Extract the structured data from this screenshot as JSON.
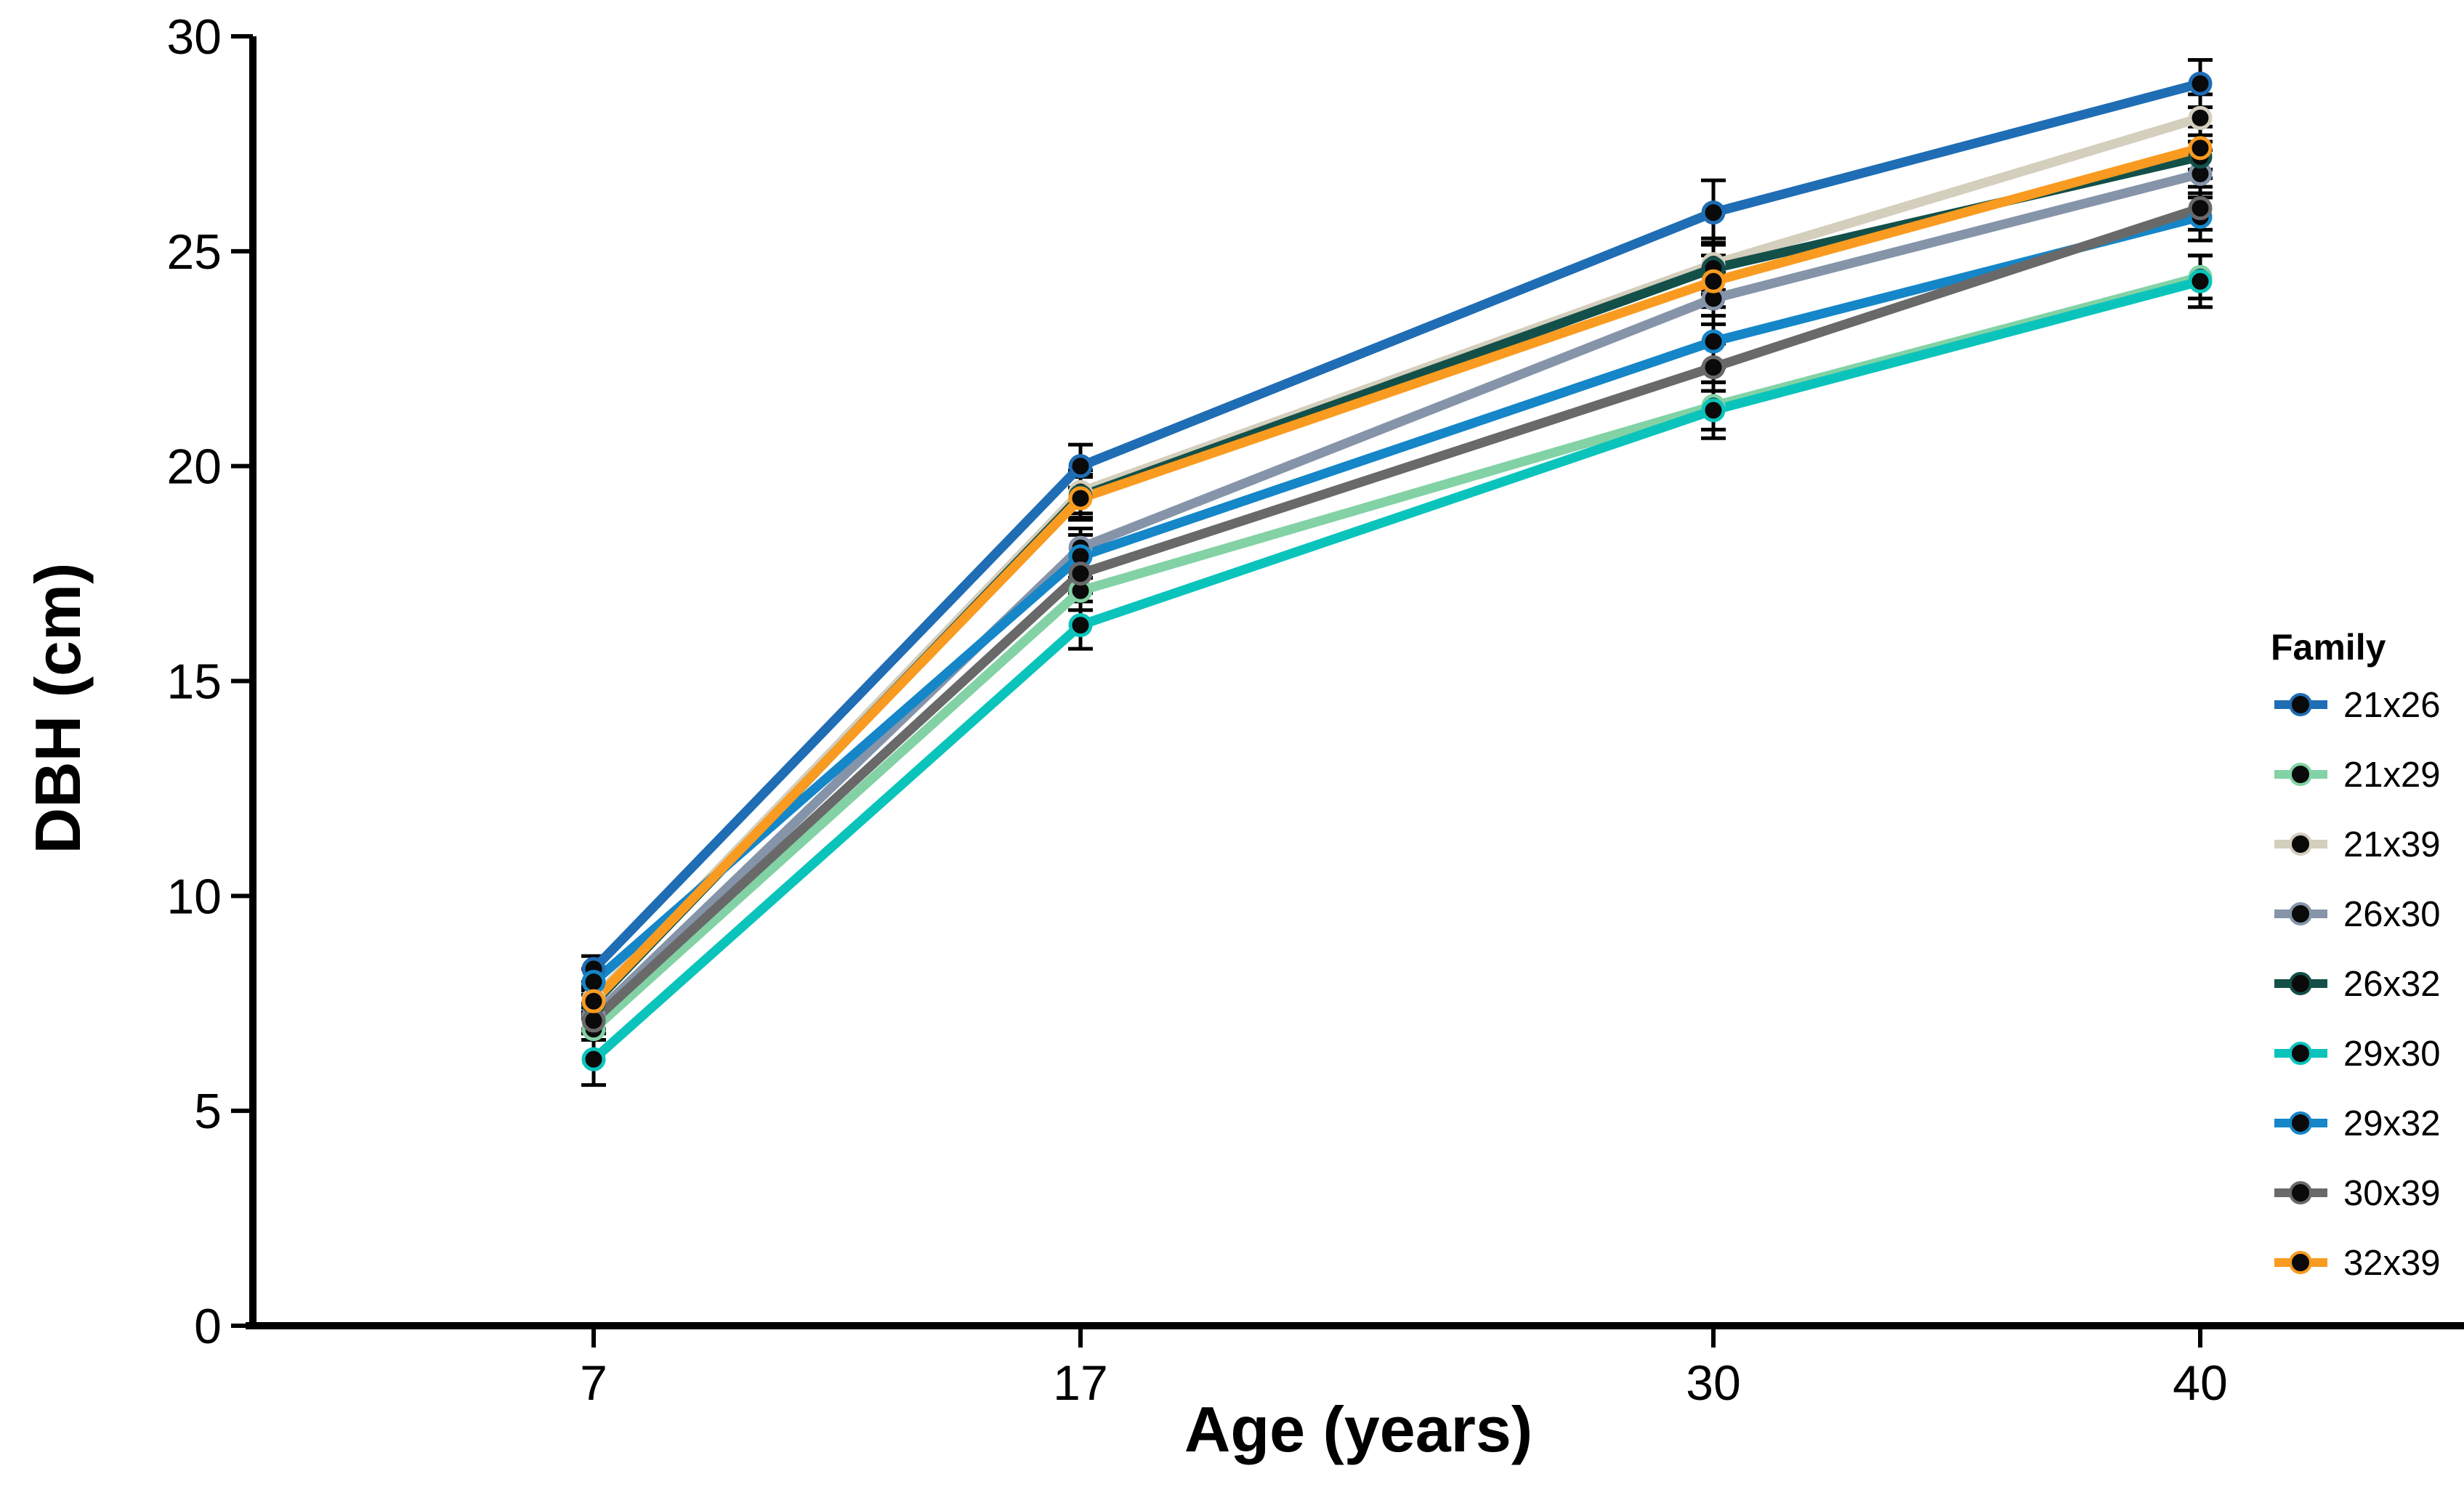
{
  "figure": {
    "background": "#ffffff",
    "axis_color": "#000000",
    "errorbar_color": "#000000",
    "marker_fill": "#0a0a0a"
  },
  "chart_data": {
    "type": "line",
    "title": "",
    "xlabel": "Age (years)",
    "ylabel": "DBH (cm)",
    "x": [
      7,
      17,
      30,
      40
    ],
    "x_tick_labels": [
      "7",
      "17",
      "30",
      "40"
    ],
    "y_ticks": [
      0,
      5,
      10,
      15,
      20,
      25,
      30
    ],
    "y_tick_labels": [
      "0",
      "5",
      "10",
      "15",
      "20",
      "25",
      "30"
    ],
    "xlim": [
      0,
      45.4
    ],
    "ylim": [
      0,
      30
    ],
    "grid": false,
    "legend_title": "Family",
    "legend_position": "right",
    "series": [
      {
        "name": "21x26",
        "color": "#1f6db4",
        "values": [
          8.3,
          20.0,
          25.9,
          28.9
        ],
        "err": [
          0.3,
          0.5,
          0.75,
          0.55
        ]
      },
      {
        "name": "21x29",
        "color": "#82d2a5",
        "values": [
          6.9,
          17.1,
          21.4,
          24.4
        ],
        "err": [
          0.25,
          0.45,
          0.55,
          0.5
        ]
      },
      {
        "name": "21x39",
        "color": "#d4cebd",
        "values": [
          7.6,
          19.4,
          24.7,
          28.1
        ],
        "err": [
          0.3,
          0.5,
          0.6,
          0.55
        ]
      },
      {
        "name": "26x30",
        "color": "#8594a9",
        "values": [
          7.2,
          18.1,
          23.9,
          26.8
        ],
        "err": [
          0.3,
          0.45,
          0.6,
          0.55
        ]
      },
      {
        "name": "26x32",
        "color": "#13504a",
        "values": [
          7.5,
          19.3,
          24.6,
          27.2
        ],
        "err": [
          0.3,
          0.5,
          0.6,
          0.5
        ]
      },
      {
        "name": "29x30",
        "color": "#0ac4bc",
        "values": [
          6.2,
          16.3,
          21.3,
          24.3
        ],
        "err": [
          0.6,
          0.55,
          0.65,
          0.6
        ]
      },
      {
        "name": "29x32",
        "color": "#1586c8",
        "values": [
          8.0,
          17.9,
          22.9,
          25.8
        ],
        "err": [
          0.3,
          0.5,
          0.6,
          0.55
        ]
      },
      {
        "name": "30x39",
        "color": "#696969",
        "values": [
          7.1,
          17.5,
          22.3,
          26.0
        ],
        "err": [
          0.3,
          0.45,
          0.55,
          0.5
        ]
      },
      {
        "name": "32x39",
        "color": "#f99b20",
        "values": [
          7.55,
          19.25,
          24.3,
          27.4
        ],
        "err": [
          0.3,
          0.5,
          0.6,
          0.5
        ]
      }
    ]
  }
}
